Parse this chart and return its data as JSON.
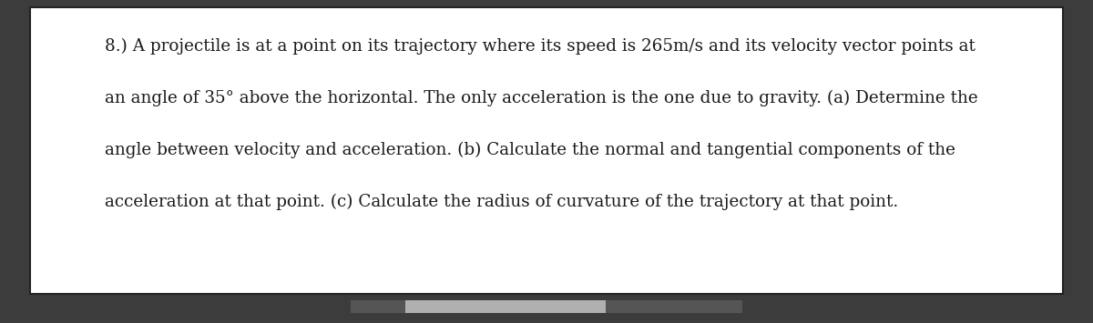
{
  "lines": [
    "8.) A projectile is at a point on its trajectory where its speed is 265m/s and its velocity vector points at",
    "an angle of 35° above the horizontal. The only acceleration is the one due to gravity. (a) Determine the",
    "angle between velocity and acceleration. (b) Calculate the normal and tangential components of the",
    "acceleration at that point. (c) Calculate the radius of curvature of the trajectory at that point."
  ],
  "background_color": "#3c3c3c",
  "box_color": "#ffffff",
  "box_border_color": "#222222",
  "text_color": "#1a1a1a",
  "font_size": 13.2,
  "font_family": "DejaVu Serif",
  "scrollbar_thumb_color": "#b0b0b0",
  "scrollbar_track_color": "#555555"
}
